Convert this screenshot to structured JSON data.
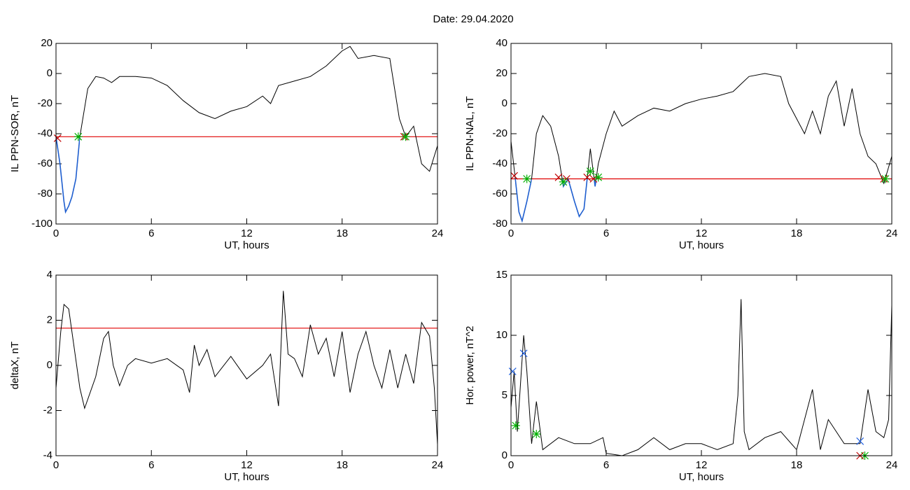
{
  "title": "Date:  29.04.2020",
  "chart_data": [
    {
      "type": "line",
      "ylabel": "IL PPN-SOR, nT",
      "xlabel": "UT, hours",
      "xlim": [
        0,
        24
      ],
      "xticks": [
        0,
        6,
        12,
        18,
        24
      ],
      "ylim": [
        -100,
        20
      ],
      "yticks": [
        -100,
        -80,
        -60,
        -40,
        -20,
        0,
        20
      ],
      "x": [
        0,
        0.25,
        0.5,
        0.6,
        0.8,
        1,
        1.25,
        1.5,
        2,
        2.5,
        3,
        3.5,
        4,
        5,
        6,
        7,
        8,
        9,
        10,
        11,
        12,
        13,
        13.5,
        14,
        15,
        16,
        17,
        18,
        18.5,
        19,
        20,
        21,
        21.3,
        21.6,
        22,
        22.5,
        23,
        23.5,
        24
      ],
      "series": [
        {
          "color": "#000000",
          "values": [
            -42,
            -60,
            -85,
            -92,
            -88,
            -82,
            -70,
            -42,
            -10,
            -2,
            -3,
            -6,
            -2,
            -2,
            -3,
            -8,
            -18,
            -26,
            -30,
            -25,
            -22,
            -15,
            -20,
            -8,
            -5,
            -2,
            5,
            15,
            18,
            10,
            12,
            10,
            -10,
            -30,
            -42,
            -35,
            -60,
            -65,
            -48
          ]
        }
      ],
      "threshold": {
        "value": -42,
        "color": "#e00000"
      },
      "highlight": {
        "color": "#1f5fd0",
        "ranges": [
          [
            0,
            1.5
          ]
        ]
      },
      "markers": [
        {
          "symbol": "x",
          "color": "#c00000",
          "x": [
            0.1,
            21.9
          ],
          "values": [
            -43,
            -42
          ]
        },
        {
          "symbol": "asterisk",
          "color": "#00b000",
          "x": [
            1.4,
            22
          ],
          "values": [
            -42,
            -42
          ]
        }
      ]
    },
    {
      "type": "line",
      "ylabel": "IL PPN-NAL, nT",
      "xlabel": "UT, hours",
      "xlim": [
        0,
        24
      ],
      "xticks": [
        0,
        6,
        12,
        18,
        24
      ],
      "ylim": [
        -80,
        40
      ],
      "yticks": [
        -80,
        -60,
        -40,
        -20,
        0,
        20,
        40
      ],
      "x": [
        0,
        0.25,
        0.5,
        0.7,
        1,
        1.3,
        1.6,
        2,
        2.5,
        3,
        3.3,
        3.6,
        4,
        4.3,
        4.6,
        4.8,
        5,
        5.3,
        5.5,
        6,
        6.5,
        7,
        8,
        9,
        10,
        11,
        12,
        13,
        14,
        14.5,
        15,
        16,
        17,
        17.5,
        18,
        18.5,
        19,
        19.5,
        20,
        20.5,
        21,
        21.5,
        22,
        22.5,
        23,
        23.5,
        24
      ],
      "series": [
        {
          "color": "#000000",
          "values": [
            -25,
            -48,
            -72,
            -78,
            -65,
            -50,
            -20,
            -8,
            -15,
            -35,
            -55,
            -50,
            -65,
            -75,
            -70,
            -50,
            -30,
            -55,
            -40,
            -20,
            -5,
            -15,
            -8,
            -3,
            -5,
            0,
            3,
            5,
            8,
            13,
            18,
            20,
            18,
            0,
            -10,
            -20,
            -5,
            -20,
            5,
            15,
            -15,
            10,
            -20,
            -35,
            -40,
            -53,
            -35
          ]
        }
      ],
      "threshold": {
        "value": -50,
        "color": "#e00000"
      },
      "highlight": {
        "color": "#1f5fd0",
        "ranges": [
          [
            0.25,
            1.3
          ],
          [
            3,
            5.5
          ]
        ]
      },
      "markers": [
        {
          "symbol": "x",
          "color": "#c00000",
          "x": [
            0.2,
            3,
            3.5,
            4.8,
            5.2,
            23.5
          ],
          "values": [
            -48,
            -49,
            -50,
            -49,
            -50,
            -50
          ]
        },
        {
          "symbol": "asterisk",
          "color": "#00b000",
          "x": [
            1,
            3.3,
            5,
            5.5,
            23.6
          ],
          "values": [
            -50,
            -52,
            -45,
            -49,
            -50
          ]
        }
      ]
    },
    {
      "type": "line",
      "ylabel": "deltaX, nT",
      "xlabel": "UT, hours",
      "xlim": [
        0,
        24
      ],
      "xticks": [
        0,
        6,
        12,
        18,
        24
      ],
      "ylim": [
        -4,
        4
      ],
      "yticks": [
        -4,
        -2,
        0,
        2,
        4
      ],
      "x": [
        0,
        0.3,
        0.5,
        0.8,
        1,
        1.5,
        1.8,
        2,
        2.5,
        3,
        3.3,
        3.6,
        4,
        4.5,
        5,
        6,
        7,
        8,
        8.4,
        8.7,
        9,
        9.5,
        10,
        11,
        12,
        13,
        13.5,
        14,
        14.3,
        14.6,
        15,
        15.5,
        16,
        16.5,
        17,
        17.5,
        18,
        18.5,
        19,
        19.5,
        20,
        20.5,
        21,
        21.5,
        22,
        22.5,
        23,
        23.5,
        23.8,
        24
      ],
      "series": [
        {
          "color": "#000000",
          "values": [
            -1,
            1.5,
            2.7,
            2.5,
            1.5,
            -1,
            -1.9,
            -1.5,
            -0.5,
            1.2,
            1.5,
            0,
            -0.9,
            0,
            0.3,
            0.1,
            0.3,
            -0.2,
            -1.2,
            0.9,
            0,
            0.7,
            -0.5,
            0.4,
            -0.6,
            0,
            0.5,
            -1.8,
            3.3,
            0.5,
            0.3,
            -0.5,
            1.8,
            0.5,
            1.2,
            -0.5,
            1.5,
            -1.2,
            0.5,
            1.5,
            0,
            -1,
            0.7,
            -1,
            0.5,
            -0.8,
            1.9,
            1.3,
            -1,
            -3.5
          ]
        }
      ],
      "threshold": {
        "value": 1.65,
        "color": "#e00000"
      }
    },
    {
      "type": "line",
      "ylabel": "Hor. power, nT^2",
      "xlabel": "UT, hours",
      "xlim": [
        0,
        24
      ],
      "xticks": [
        0,
        6,
        12,
        18,
        24
      ],
      "ylim": [
        0,
        15
      ],
      "yticks": [
        0,
        5,
        10,
        15
      ],
      "x": [
        0,
        0.2,
        0.4,
        0.6,
        0.8,
        1,
        1.3,
        1.6,
        2,
        3,
        4,
        5,
        5.8,
        6,
        7,
        8,
        9,
        10,
        11,
        12,
        13,
        14,
        14.3,
        14.5,
        14.7,
        15,
        16,
        17,
        18,
        19,
        19.5,
        20,
        21,
        22,
        22.5,
        23,
        23.5,
        23.8,
        24
      ],
      "series": [
        {
          "color": "#000000",
          "values": [
            4,
            7,
            2,
            6,
            10,
            7,
            1,
            4.5,
            0.5,
            1.5,
            1,
            1,
            1.5,
            0.2,
            0,
            0.5,
            1.5,
            0.5,
            1,
            1,
            0.5,
            1,
            5,
            13,
            2,
            0.5,
            1.5,
            2,
            0.5,
            5.5,
            0.5,
            3,
            1,
            1,
            5.5,
            2,
            1.5,
            3,
            12.5
          ]
        }
      ],
      "markers": [
        {
          "symbol": "x",
          "color": "#2060e0",
          "x": [
            0.1,
            0.8,
            22
          ],
          "values": [
            7,
            8.5,
            1.2
          ]
        },
        {
          "symbol": "asterisk",
          "color": "#00b000",
          "x": [
            0.3,
            1.6,
            22.3
          ],
          "values": [
            2.5,
            1.8,
            0
          ]
        },
        {
          "symbol": "x",
          "color": "#c00000",
          "x": [
            22
          ],
          "values": [
            0
          ]
        }
      ]
    }
  ]
}
